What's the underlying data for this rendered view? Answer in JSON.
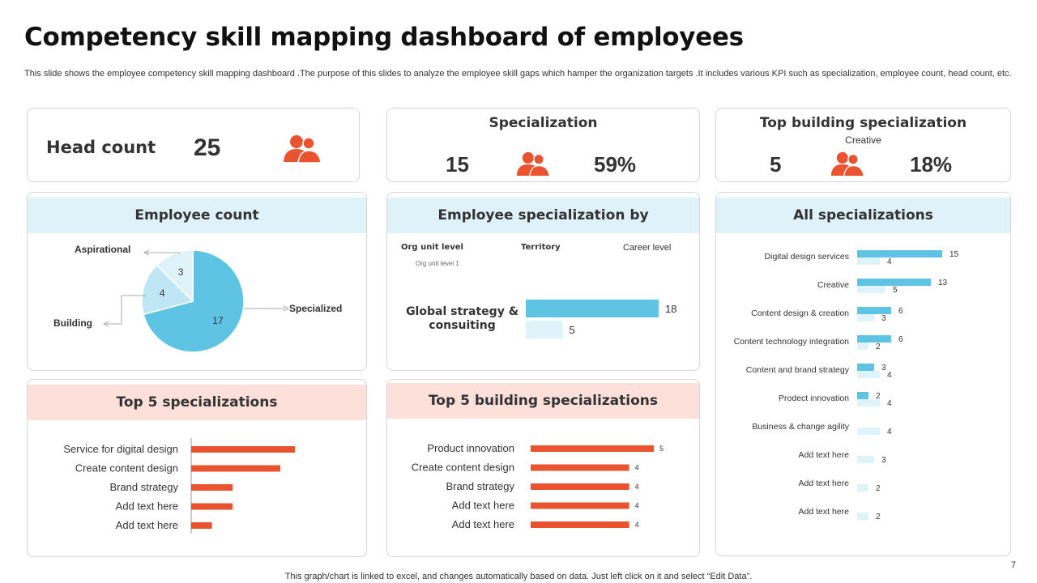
{
  "title": "Competency skill mapping dashboard of employees",
  "subtitle": "This slide shows the employee competency skill mapping dashboard .The purpose of this slides to analyze the employee skill gaps which hamper the organization targets  .It includes various KPI such as specialization, employee count, head count, etc.",
  "colors": {
    "accent": "#e9532f",
    "blue": "#5fc3e4",
    "lightblue": "#dff1f9",
    "pink": "#fde0da",
    "paleblue": "#dff3fb"
  },
  "head_count": {
    "label": "Head count",
    "value": "25",
    "icon": "people-icon"
  },
  "specialization": {
    "title": "Specialization",
    "count": "15",
    "percent": "59%",
    "icon": "people-icon"
  },
  "top_building": {
    "title": "Top building specialization",
    "name": "Creative",
    "count": "5",
    "percent": "18%",
    "icon": "people-icon"
  },
  "employee_count": {
    "title": "Employee count"
  },
  "emp_spec": {
    "title": "Employee specialization by",
    "filters": {
      "org_unit": "Org unit level",
      "territory": "Territory",
      "career": "Career level",
      "org_unit_sub": "Org unit level 1"
    },
    "row_label": "Global strategy & consuiting"
  },
  "all_specs": {
    "title": "All specializations"
  },
  "top5": {
    "title": "Top 5 specializations"
  },
  "top5_building": {
    "title": "Top 5 building specializations"
  },
  "footer": "This graph/chart is linked to excel, and changes automatically based on data. Just left click on it and select “Edit Data”.",
  "page_number": "7",
  "chart_data": [
    {
      "id": "employee_count",
      "type": "pie",
      "title": "Employee count",
      "labels": [
        "Specialized",
        "Building",
        "Aspirational"
      ],
      "values": [
        17,
        4,
        3
      ],
      "colors": [
        "#5fc3e4",
        "#bfe6f4",
        "#dff3fb"
      ]
    },
    {
      "id": "emp_spec",
      "type": "bar",
      "orientation": "horizontal",
      "title": "Employee specialization by",
      "categories": [
        "Global strategy & consuiting"
      ],
      "series": [
        {
          "name": "Specialized",
          "values": [
            18
          ],
          "color": "#5fc3e4"
        },
        {
          "name": "Building",
          "values": [
            5
          ],
          "color": "#dff3fb"
        }
      ]
    },
    {
      "id": "all_specs",
      "type": "bar",
      "orientation": "horizontal",
      "title": "All specializations",
      "categories": [
        "Digital design services",
        "Creative",
        "Content design & creation",
        "Content technology integration",
        "Content and  brand strategy",
        "Prodect innovation",
        "Business & change agility",
        "Add text here",
        "Add text here",
        "Add text here"
      ],
      "series": [
        {
          "name": "Specialized",
          "values": [
            15,
            13,
            6,
            6,
            3,
            2,
            null,
            null,
            null,
            null
          ],
          "color": "#5fc3e4"
        },
        {
          "name": "Building",
          "values": [
            4,
            5,
            3,
            2,
            4,
            4,
            4,
            3,
            2,
            2
          ],
          "color": "#dff3fb"
        }
      ]
    },
    {
      "id": "top5",
      "type": "bar",
      "orientation": "horizontal",
      "title": "Top 5 specializations",
      "categories": [
        "Service for digital design",
        "Create content design",
        "Brand strategy",
        "Add text here",
        "Add text here"
      ],
      "values": [
        5,
        4.3,
        2,
        2,
        1
      ],
      "color": "#e9532f"
    },
    {
      "id": "top5_building",
      "type": "bar",
      "orientation": "horizontal",
      "title": "Top 5 building specializations",
      "categories": [
        "Product innovation",
        "Create content design",
        "Brand strategy",
        "Add text here",
        "Add text here"
      ],
      "values": [
        5,
        4,
        4,
        4,
        4
      ],
      "color": "#e9532f"
    }
  ]
}
